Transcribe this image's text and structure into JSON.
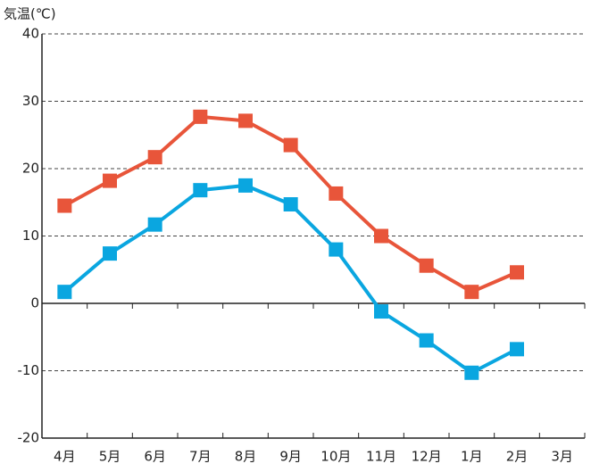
{
  "chart_data": {
    "type": "line",
    "y_label": "気温(℃)",
    "categories": [
      "4月",
      "5月",
      "6月",
      "7月",
      "8月",
      "9月",
      "10月",
      "11月",
      "12月",
      "1月",
      "2月",
      "3月"
    ],
    "series": [
      {
        "color": "#e8553a",
        "values": [
          14.5,
          18.2,
          21.7,
          27.7,
          27.1,
          23.5,
          16.3,
          10,
          5.6,
          1.7,
          4.6,
          null
        ]
      },
      {
        "color": "#0aa6e0",
        "values": [
          1.7,
          7.4,
          11.7,
          16.8,
          17.5,
          14.7,
          8,
          -1.2,
          -5.5,
          -10.3,
          -6.8,
          null
        ]
      }
    ],
    "ylim": [
      -20,
      40
    ],
    "yticks": [
      -20,
      -10,
      0,
      10,
      20,
      30,
      40
    ],
    "grid": true
  }
}
